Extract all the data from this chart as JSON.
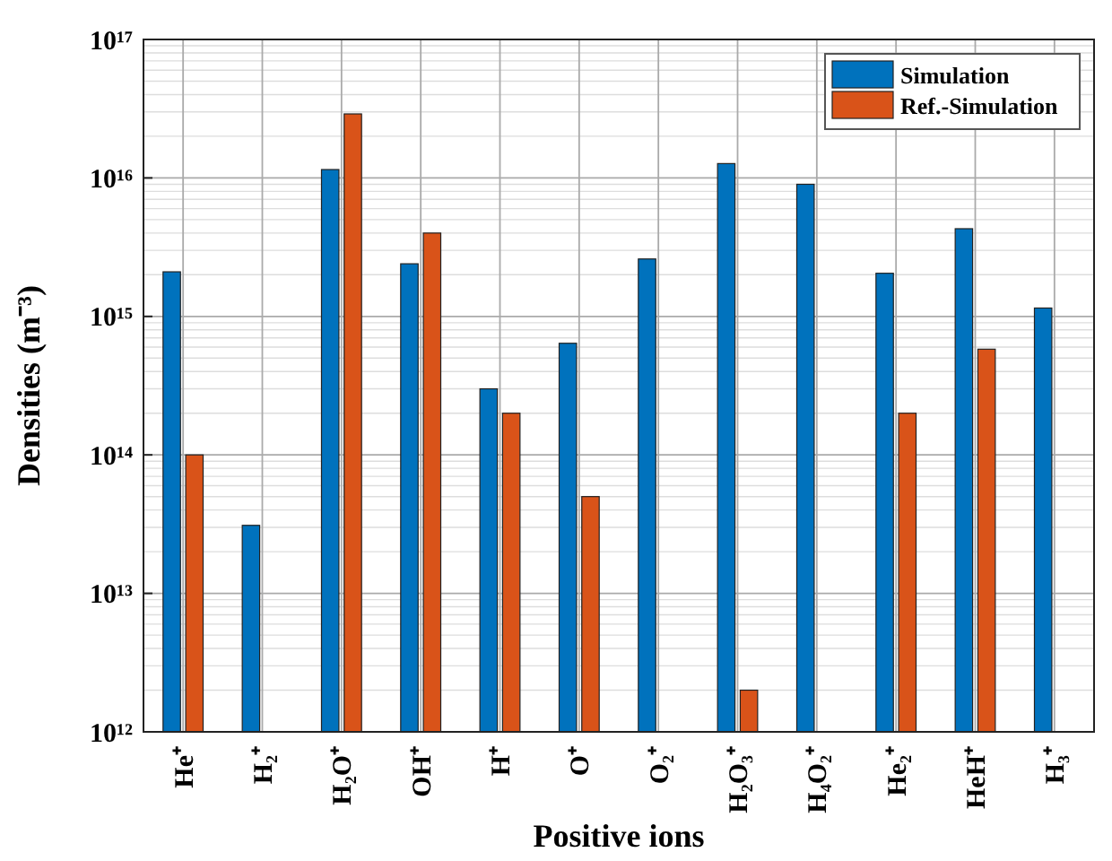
{
  "chart_data": {
    "type": "bar",
    "xlabel": "Positive ions",
    "ylabel": "Densities (m⁻³)",
    "categories": [
      "He⁺",
      "H₂⁺",
      "H₂O⁺",
      "OH⁺",
      "H⁺",
      "O⁺",
      "O₂⁺",
      "H₂O₃⁺",
      "H₄O₂⁺",
      "He₂⁺",
      "HeH⁺",
      "H₃⁺"
    ],
    "series": [
      {
        "name": "Simulation",
        "color": "#0072bd",
        "values": [
          2100000000000000.0,
          31000000000000.0,
          1.15e+16,
          2400000000000000.0,
          300000000000000.0,
          640000000000000.0,
          2600000000000000.0,
          1.27e+16,
          9000000000000000.0,
          2050000000000000.0,
          4300000000000000.0,
          1150000000000000.0
        ]
      },
      {
        "name": "Ref.-Simulation",
        "color": "#d95319",
        "values": [
          100000000000000.0,
          null,
          2.9e+16,
          4000000000000000.0,
          200000000000000.0,
          50000000000000.0,
          null,
          2000000000000.0,
          null,
          200000000000000.0,
          580000000000000.0,
          null
        ]
      }
    ],
    "log": true,
    "ylim": [
      1000000000000.0,
      1e+17
    ],
    "yticks": [
      {
        "value": 1000000000000.0,
        "label": "10¹²"
      },
      {
        "value": 10000000000000.0,
        "label": "10¹³"
      },
      {
        "value": 100000000000000.0,
        "label": "10¹⁴"
      },
      {
        "value": 1000000000000000.0,
        "label": "10¹⁵"
      },
      {
        "value": 1e+16,
        "label": "10¹⁶"
      },
      {
        "value": 1e+17,
        "label": "10¹⁷"
      }
    ],
    "grid": true,
    "legend": "top right"
  }
}
